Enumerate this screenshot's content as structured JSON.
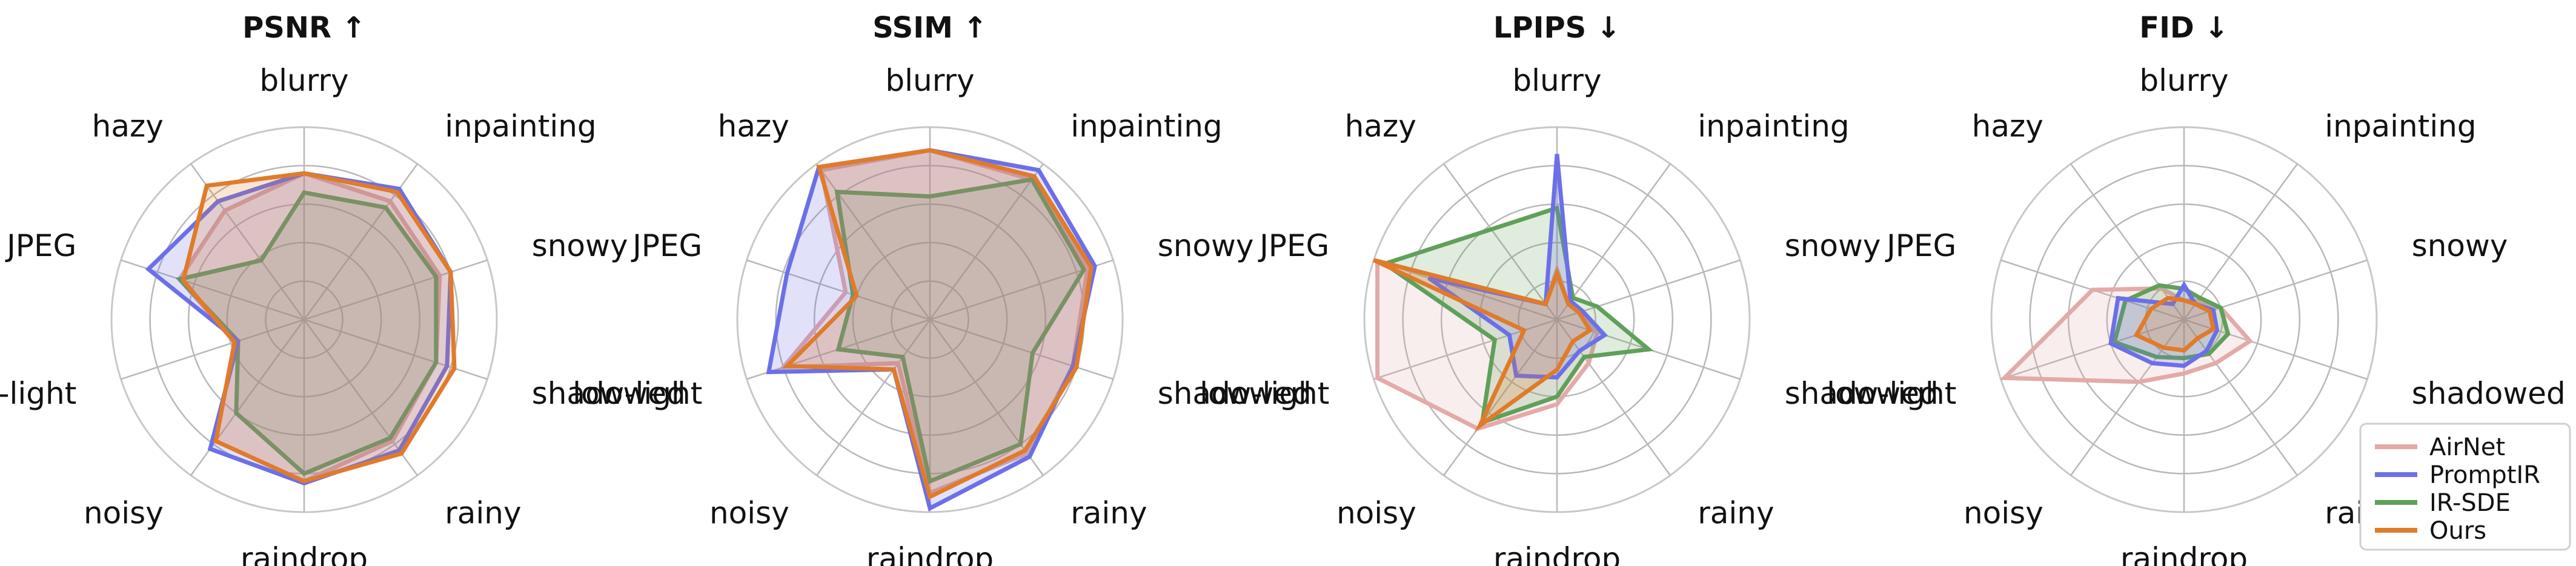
{
  "chart_data": [
    {
      "type": "radar",
      "title": "PSNR ↑",
      "categories": [
        "blurry",
        "inpainting",
        "snowy",
        "shadowed",
        "rainy",
        "raindrop",
        "noisy",
        "low-light",
        "JPEG",
        "hazy"
      ],
      "rlim": [
        0,
        1
      ],
      "grid": true,
      "series": [
        {
          "name": "AirNet",
          "values": [
            0.76,
            0.76,
            0.74,
            0.72,
            0.78,
            0.84,
            0.78,
            0.38,
            0.68,
            0.7
          ]
        },
        {
          "name": "PromptIR",
          "values": [
            0.76,
            0.84,
            0.8,
            0.78,
            0.84,
            0.85,
            0.83,
            0.36,
            0.85,
            0.76
          ]
        },
        {
          "name": "IR-SDE",
          "values": [
            0.66,
            0.72,
            0.72,
            0.72,
            0.76,
            0.8,
            0.6,
            0.36,
            0.68,
            0.38
          ]
        },
        {
          "name": "Ours",
          "values": [
            0.76,
            0.82,
            0.8,
            0.82,
            0.86,
            0.84,
            0.78,
            0.38,
            0.66,
            0.86
          ]
        }
      ]
    },
    {
      "type": "radar",
      "title": "SSIM ↑",
      "categories": [
        "blurry",
        "inpainting",
        "snowy",
        "shadowed",
        "rainy",
        "raindrop",
        "noisy",
        "low-light",
        "JPEG",
        "hazy"
      ],
      "rlim": [
        0,
        1
      ],
      "grid": true,
      "series": [
        {
          "name": "AirNet",
          "values": [
            0.88,
            0.9,
            0.86,
            0.78,
            0.86,
            0.9,
            0.28,
            0.8,
            0.46,
            0.96
          ]
        },
        {
          "name": "PromptIR",
          "values": [
            0.88,
            0.96,
            0.9,
            0.78,
            0.88,
            0.98,
            0.32,
            0.88,
            0.78,
            0.98
          ]
        },
        {
          "name": "IR-SDE",
          "values": [
            0.64,
            0.9,
            0.84,
            0.56,
            0.8,
            0.84,
            0.24,
            0.5,
            0.42,
            0.82
          ]
        },
        {
          "name": "Ours",
          "values": [
            0.88,
            0.92,
            0.88,
            0.8,
            0.84,
            0.92,
            0.32,
            0.78,
            0.4,
            0.98
          ]
        }
      ]
    },
    {
      "type": "radar",
      "title": "LPIPS ↓",
      "categories": [
        "blurry",
        "inpainting",
        "snowy",
        "shadowed",
        "rainy",
        "raindrop",
        "noisy",
        "low-light",
        "JPEG",
        "hazy"
      ],
      "rlim": [
        0,
        1
      ],
      "grid": true,
      "series": [
        {
          "name": "AirNet",
          "values": [
            0.26,
            0.1,
            0.12,
            0.22,
            0.28,
            0.44,
            0.7,
            0.98,
            0.98,
            0.1
          ]
        },
        {
          "name": "PromptIR",
          "values": [
            0.86,
            0.12,
            0.14,
            0.26,
            0.2,
            0.3,
            0.36,
            0.26,
            0.7,
            0.1
          ]
        },
        {
          "name": "IR-SDE",
          "values": [
            0.58,
            0.14,
            0.22,
            0.5,
            0.24,
            0.4,
            0.66,
            0.34,
            0.94,
            0.58
          ]
        },
        {
          "name": "Ours",
          "values": [
            0.24,
            0.1,
            0.12,
            0.18,
            0.14,
            0.26,
            0.68,
            0.18,
            1.0,
            0.1
          ]
        }
      ]
    },
    {
      "type": "radar",
      "title": "FID ↓",
      "categories": [
        "blurry",
        "inpainting",
        "snowy",
        "shadowed",
        "rainy",
        "raindrop",
        "noisy",
        "low-light",
        "JPEG",
        "hazy"
      ],
      "rlim": [
        0,
        1
      ],
      "grid": true,
      "series": [
        {
          "name": "AirNet",
          "values": [
            0.1,
            0.12,
            0.2,
            0.36,
            0.28,
            0.28,
            0.4,
            0.98,
            0.5,
            0.2
          ]
        },
        {
          "name": "PromptIR",
          "values": [
            0.18,
            0.1,
            0.16,
            0.18,
            0.2,
            0.24,
            0.28,
            0.4,
            0.36,
            0.1
          ]
        },
        {
          "name": "IR-SDE",
          "values": [
            0.16,
            0.14,
            0.2,
            0.24,
            0.22,
            0.2,
            0.24,
            0.38,
            0.32,
            0.22
          ]
        },
        {
          "name": "Ours",
          "values": [
            0.1,
            0.1,
            0.14,
            0.16,
            0.12,
            0.16,
            0.18,
            0.26,
            0.18,
            0.14
          ]
        }
      ]
    }
  ],
  "legend": {
    "placement": "bottom-right",
    "entries": [
      {
        "name": "AirNet",
        "color": "#e3aaa8"
      },
      {
        "name": "PromptIR",
        "color": "#6b70e8"
      },
      {
        "name": "IR-SDE",
        "color": "#5fa05a"
      },
      {
        "name": "Ours",
        "color": "#e07b2a"
      }
    ]
  },
  "colors": {
    "AirNet": "#e3aaa8",
    "PromptIR": "#6b70e8",
    "IR-SDE": "#5fa05a",
    "Ours": "#e07b2a",
    "grid": "#b8b8b8",
    "outer_ring": "#c8c8c8"
  }
}
